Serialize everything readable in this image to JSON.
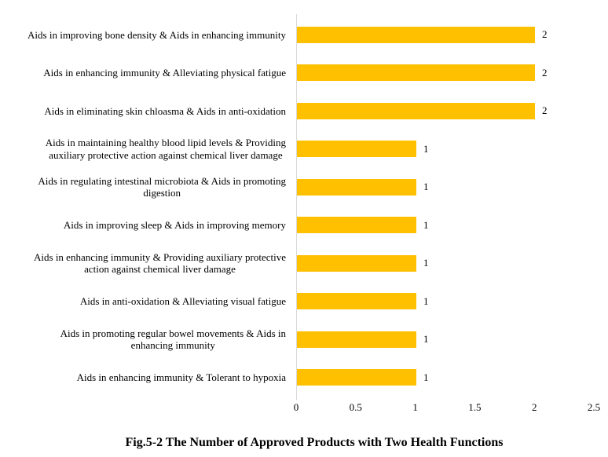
{
  "figure": {
    "caption": "Fig.5-2 The Number of Approved Products with Two Health Functions"
  },
  "chart_data": {
    "type": "bar",
    "orientation": "horizontal",
    "title": "Fig.5-2 The Number of Approved Products with Two Health Functions",
    "categories": [
      "Aids in improving bone density & Aids in enhancing immunity",
      "Aids in enhancing immunity & Alleviating physical fatigue",
      "Aids in eliminating skin chloasma & Aids in anti-oxidation",
      "Aids in maintaining healthy blood lipid levels & Providing\nauxiliary protective action against chemical liver damage",
      "Aids in regulating intestinal microbiota & Aids in promoting\ndigestion",
      "Aids in improving sleep & Aids in improving memory",
      "Aids in enhancing immunity & Providing auxiliary protective\naction against chemical liver damage",
      "Aids in anti-oxidation & Alleviating visual fatigue",
      "Aids in promoting regular bowel movements & Aids in\nenhancing immunity",
      "Aids in enhancing immunity & Tolerant to hypoxia"
    ],
    "values": [
      2,
      2,
      2,
      1,
      1,
      1,
      1,
      1,
      1,
      1
    ],
    "value_labels": [
      "2",
      "2",
      "2",
      "1",
      "1",
      "1",
      "1",
      "1",
      "1",
      "1"
    ],
    "xticks": [
      "0",
      "0.5",
      "1",
      "1.5",
      "2",
      "2.5"
    ],
    "xlim": [
      0,
      2.5
    ],
    "xlabel": "",
    "ylabel": "",
    "grid": false,
    "legend": false,
    "data_labels_position": "outside-end",
    "bar_color": "#FFC000",
    "axis_line_color": "#D9D9D9",
    "text_color": "#000000"
  }
}
